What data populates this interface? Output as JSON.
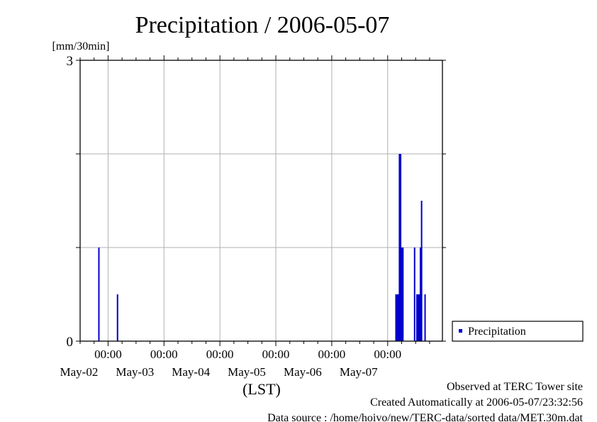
{
  "chart_data": {
    "type": "bar",
    "title": "Precipitation / 2006-05-07",
    "ylabel": "[mm/30min]",
    "xlabel": "(LST)",
    "ylim": [
      0,
      3
    ],
    "y_ticks": [
      "0",
      "3"
    ],
    "y_gridlines": [
      1,
      2
    ],
    "x_start": "2006-05-01T12:00",
    "x_end": "2006-05-07T23:30",
    "x_ticks": [
      {
        "time": "2006-05-02T00:00",
        "hour": "00:00",
        "day": "May-02"
      },
      {
        "time": "2006-05-03T00:00",
        "hour": "00:00",
        "day": "May-03"
      },
      {
        "time": "2006-05-04T00:00",
        "hour": "00:00",
        "day": "May-04"
      },
      {
        "time": "2006-05-05T00:00",
        "hour": "00:00",
        "day": "May-05"
      },
      {
        "time": "2006-05-06T00:00",
        "hour": "00:00",
        "day": "May-06"
      },
      {
        "time": "2006-05-07T00:00",
        "hour": "00:00",
        "day": "May-07"
      }
    ],
    "grid": true,
    "color": "#0000cc",
    "series": [
      {
        "name": "Precipitation",
        "points": [
          {
            "x": "2006-05-01T20:00",
            "y": 1.0
          },
          {
            "x": "2006-05-02T04:00",
            "y": 0.5
          },
          {
            "x": "2006-05-07T03:30",
            "y": 0.5
          },
          {
            "x": "2006-05-07T04:00",
            "y": 0.5
          },
          {
            "x": "2006-05-07T04:30",
            "y": 0.5
          },
          {
            "x": "2006-05-07T05:00",
            "y": 2.0
          },
          {
            "x": "2006-05-07T05:30",
            "y": 2.0
          },
          {
            "x": "2006-05-07T06:00",
            "y": 1.0
          },
          {
            "x": "2006-05-07T06:30",
            "y": 1.0
          },
          {
            "x": "2006-05-07T11:30",
            "y": 1.0
          },
          {
            "x": "2006-05-07T12:30",
            "y": 0.5
          },
          {
            "x": "2006-05-07T13:00",
            "y": 0.5
          },
          {
            "x": "2006-05-07T13:30",
            "y": 0.5
          },
          {
            "x": "2006-05-07T14:00",
            "y": 1.0
          },
          {
            "x": "2006-05-07T14:30",
            "y": 1.5
          },
          {
            "x": "2006-05-07T16:00",
            "y": 0.5
          }
        ]
      }
    ],
    "legend": {
      "label": "Precipitation",
      "placement": "right"
    }
  },
  "footer": {
    "observed": "Observed at TERC Tower site",
    "created": "Created Automatically at 2006-05-07/23:32:56",
    "source": "Data source : /home/hoivo/new/TERC-data/sorted  data/MET.30m.dat"
  }
}
